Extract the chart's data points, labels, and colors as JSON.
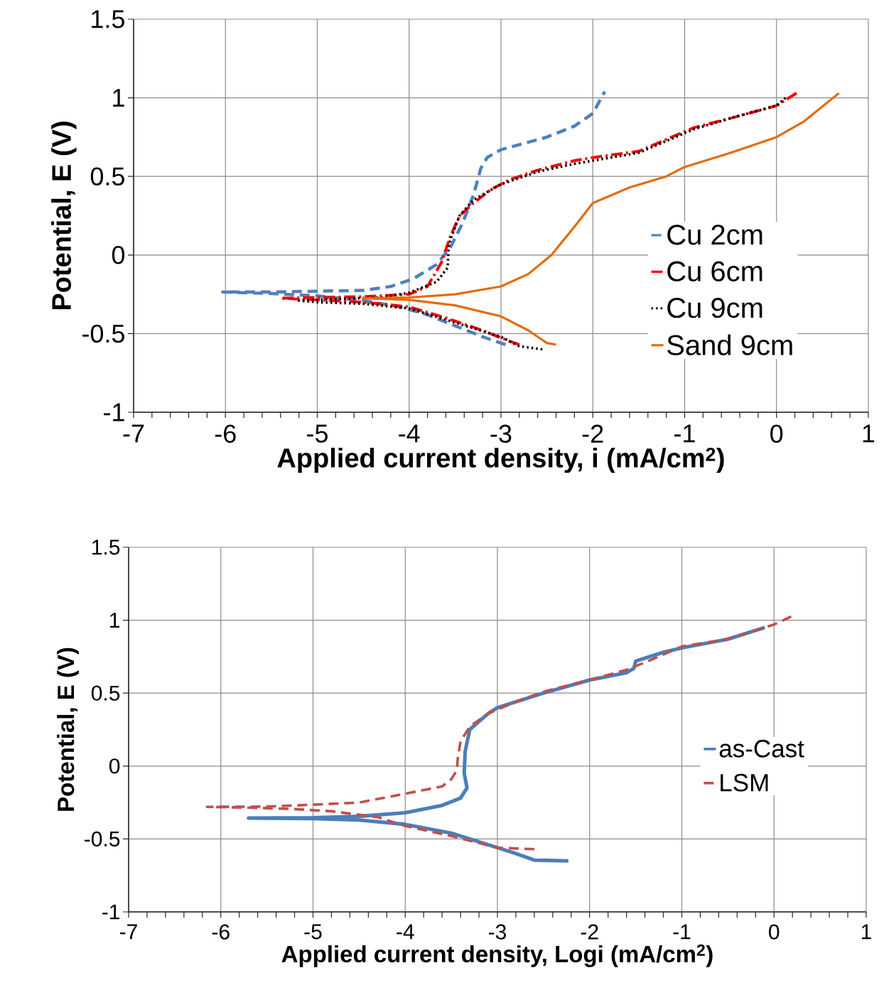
{
  "chart_data": [
    {
      "type": "line",
      "xlabel": "Applied current density, i (mA/cm$^{2}$)",
      "ylabel": "Potential, E (V)",
      "xlim": [
        -7,
        1
      ],
      "ylim": [
        -1,
        1.5
      ],
      "xticks": [
        -7,
        -6,
        -5,
        -4,
        -3,
        -2,
        -1,
        0,
        1
      ],
      "yticks": [
        -1,
        -0.5,
        0,
        0.5,
        1,
        1.5
      ],
      "grid": true,
      "legend": "right",
      "series": [
        {
          "name": "Cu 2cm",
          "color": "#4f81bd",
          "line_style": "dashed",
          "x": [
            -2.95,
            -3.2,
            -3.5,
            -3.8,
            -4.1,
            -4.5,
            -5,
            -5.5,
            -6.03,
            -5.5,
            -4.5,
            -4.2,
            -3.95,
            -3.7,
            -3.55,
            -3.42,
            -3.3,
            -3.22,
            -3.15,
            -3.0,
            -2.5,
            -2.2,
            -2.0,
            -1.87
          ],
          "values": [
            -0.57,
            -0.52,
            -0.45,
            -0.38,
            -0.33,
            -0.29,
            -0.26,
            -0.245,
            -0.235,
            -0.235,
            -0.225,
            -0.2,
            -0.15,
            -0.06,
            0.05,
            0.2,
            0.38,
            0.55,
            0.62,
            0.67,
            0.75,
            0.82,
            0.9,
            1.04
          ]
        },
        {
          "name": "Cu 6cm",
          "color": "#ff0000",
          "line_style": "dashdot",
          "x": [
            -2.8,
            -2.9,
            -3.2,
            -3.6,
            -4.0,
            -4.5,
            -5,
            -5.4,
            -5,
            -4.5,
            -4.0,
            -3.8,
            -3.65,
            -3.55,
            -3.45,
            -3.3,
            -3.1,
            -2.9,
            -2.6,
            -2.2,
            -2.0,
            -1.5,
            -1.1,
            -0.9,
            -0.5,
            0,
            0.22
          ],
          "values": [
            -0.57,
            -0.55,
            -0.48,
            -0.4,
            -0.33,
            -0.3,
            -0.285,
            -0.275,
            -0.27,
            -0.265,
            -0.25,
            -0.2,
            -0.05,
            0.12,
            0.25,
            0.33,
            0.42,
            0.48,
            0.54,
            0.6,
            0.62,
            0.66,
            0.76,
            0.81,
            0.87,
            0.95,
            1.03
          ]
        },
        {
          "name": "Cu 9cm",
          "color": "#000000",
          "line_style": "dotted",
          "x": [
            -2.55,
            -2.8,
            -3.0,
            -3.5,
            -4.0,
            -4.5,
            -5,
            -5.2,
            -4.8,
            -4.3,
            -4.0,
            -3.7,
            -3.58,
            -3.57,
            -3.55,
            -3.45,
            -3.3,
            -3.0,
            -2.6,
            -2.2,
            -2.0,
            -1.5,
            -1.1,
            -0.9,
            -0.5,
            0,
            0.1
          ],
          "values": [
            -0.6,
            -0.58,
            -0.52,
            -0.43,
            -0.34,
            -0.31,
            -0.3,
            -0.29,
            -0.28,
            -0.27,
            -0.24,
            -0.17,
            -0.08,
            0.05,
            0.1,
            0.25,
            0.35,
            0.45,
            0.53,
            0.58,
            0.6,
            0.65,
            0.75,
            0.8,
            0.87,
            0.95,
            1.0
          ]
        },
        {
          "name": "Sand 9cm",
          "color": "#e36c09",
          "line_style": "solid",
          "x": [
            -2.4,
            -2.5,
            -2.7,
            -3,
            -3.5,
            -4,
            -4.5,
            -4,
            -3.5,
            -3,
            -2.7,
            -2.45,
            -2.2,
            -2.0,
            -1.6,
            -1.2,
            -1.0,
            -0.5,
            0,
            0.3,
            0.68
          ],
          "values": [
            -0.57,
            -0.56,
            -0.48,
            -0.39,
            -0.32,
            -0.285,
            -0.275,
            -0.27,
            -0.25,
            -0.2,
            -0.12,
            0.0,
            0.18,
            0.33,
            0.43,
            0.5,
            0.56,
            0.65,
            0.75,
            0.85,
            1.03
          ]
        }
      ]
    },
    {
      "type": "line",
      "xlabel": "Applied current density, Logi (mA/cm$^{2}$)",
      "ylabel": "Potential, E (V)",
      "xlim": [
        -7,
        1
      ],
      "ylim": [
        -1,
        1.5
      ],
      "xticks": [
        -7,
        -6,
        -5,
        -4,
        -3,
        -2,
        -1,
        0,
        1
      ],
      "yticks": [
        -1,
        -0.5,
        0,
        0.5,
        1,
        1.5
      ],
      "grid": true,
      "legend": "right",
      "series": [
        {
          "name": "as-Cast",
          "color": "#4a7ebb",
          "line_style": "solid",
          "x": [
            -2.23,
            -2.6,
            -2.8,
            -3.0,
            -3.5,
            -4.0,
            -4.5,
            -5,
            -5.7,
            -5,
            -4.5,
            -4,
            -3.6,
            -3.4,
            -3.33,
            -3.36,
            -3.35,
            -3.3,
            -3.1,
            -3.0,
            -2.5,
            -2.0,
            -1.6,
            -1.52,
            -1.5,
            -1.2,
            -1.0,
            -0.5,
            -0.1
          ],
          "values": [
            -0.65,
            -0.645,
            -0.6,
            -0.56,
            -0.46,
            -0.4,
            -0.37,
            -0.36,
            -0.357,
            -0.355,
            -0.345,
            -0.32,
            -0.27,
            -0.22,
            -0.15,
            -0.05,
            0.1,
            0.25,
            0.36,
            0.4,
            0.5,
            0.59,
            0.64,
            0.67,
            0.72,
            0.78,
            0.81,
            0.87,
            0.95
          ]
        },
        {
          "name": "LSM",
          "color": "#c0504d",
          "line_style": "dashed",
          "x": [
            -2.6,
            -3.0,
            -3.5,
            -4.0,
            -4.3,
            -4.8,
            -5.2,
            -5.7,
            -6.15,
            -5.5,
            -5,
            -4.5,
            -4,
            -3.6,
            -3.5,
            -3.44,
            -3.43,
            -3.4,
            -3.3,
            -3.1,
            -2.8,
            -2.5,
            -2.0,
            -1.6,
            -1.4,
            -1.0,
            -0.5,
            0,
            0.2
          ],
          "values": [
            -0.57,
            -0.56,
            -0.48,
            -0.41,
            -0.35,
            -0.31,
            -0.295,
            -0.285,
            -0.28,
            -0.278,
            -0.265,
            -0.25,
            -0.19,
            -0.14,
            -0.09,
            -0.03,
            0.05,
            0.17,
            0.27,
            0.36,
            0.44,
            0.51,
            0.59,
            0.66,
            0.71,
            0.82,
            0.87,
            0.97,
            1.03
          ]
        }
      ]
    }
  ]
}
